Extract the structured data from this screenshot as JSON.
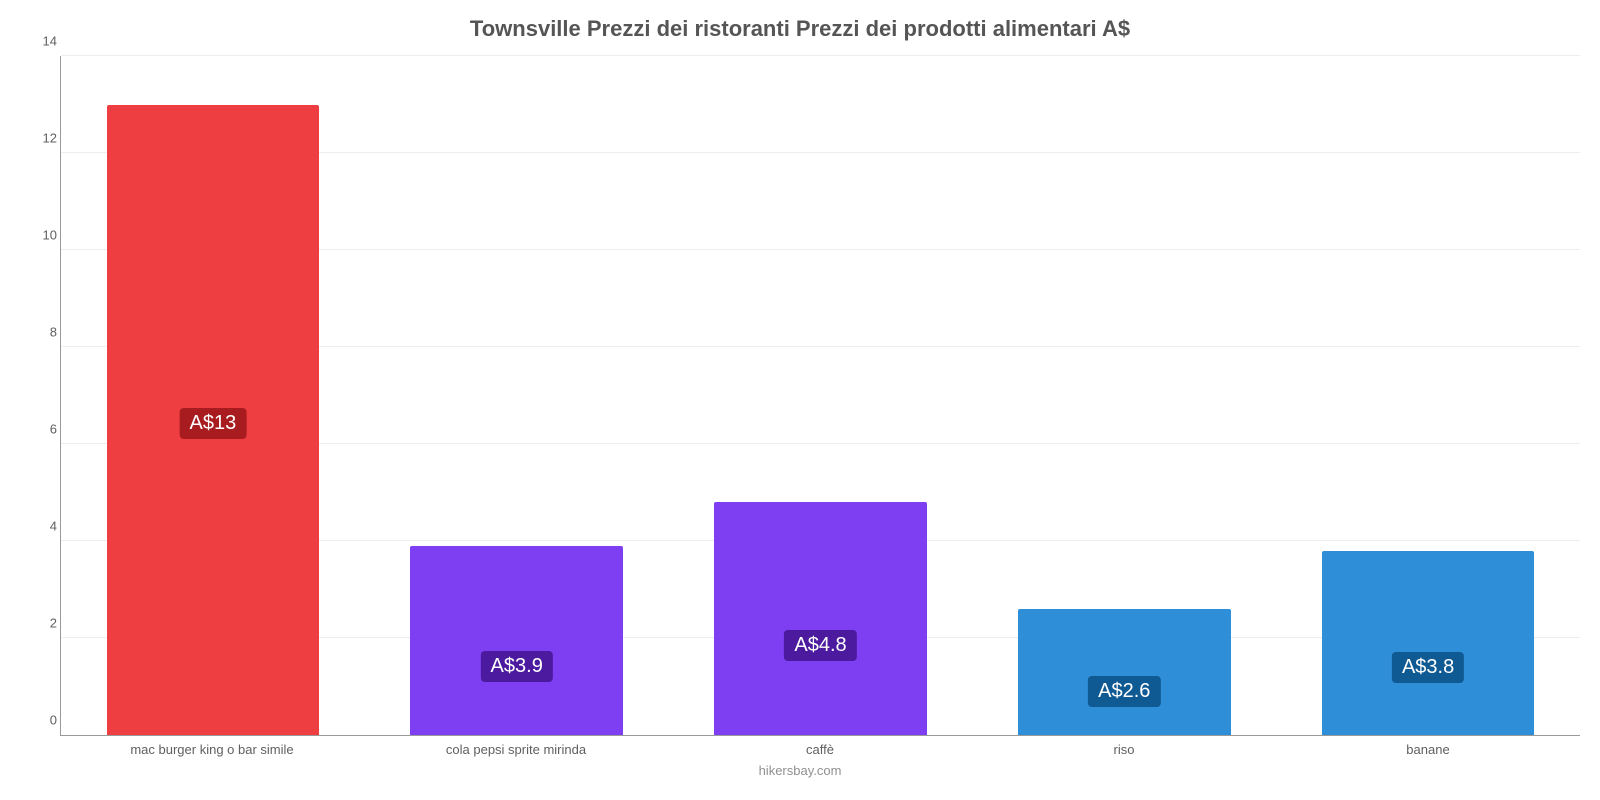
{
  "chart": {
    "type": "bar",
    "title": "Townsville Prezzi dei ristoranti Prezzi dei prodotti alimentari A$",
    "title_fontsize": 22,
    "title_color": "#555555",
    "source": "hikersbay.com",
    "source_color": "#909090",
    "background_color": "#ffffff",
    "grid_color": "#eeeeee",
    "axis_color": "#999999",
    "tick_color": "#606060",
    "tick_fontsize": 13,
    "ylim": [
      0,
      14
    ],
    "yticks": [
      0,
      2,
      4,
      6,
      8,
      10,
      12,
      14
    ],
    "bar_width": 0.7,
    "value_label_fontsize": 20,
    "categories": [
      "mac burger king o bar simile",
      "cola pepsi sprite mirinda",
      "caffè",
      "riso",
      "banane"
    ],
    "values": [
      13,
      3.9,
      4.8,
      2.6,
      3.8
    ],
    "value_labels": [
      "A$13",
      "A$3.9",
      "A$4.8",
      "A$2.6",
      "A$3.8"
    ],
    "bar_colors": [
      "#ef3e42",
      "#7e3ff2",
      "#7e3ff2",
      "#2f8ed8",
      "#2f8ed8"
    ],
    "label_bg_colors": [
      "#a81c1f",
      "#4b1a9e",
      "#4b1a9e",
      "#105a94",
      "#105a94"
    ],
    "label_offsets_pct": [
      47,
      28,
      32,
      22,
      28
    ]
  }
}
